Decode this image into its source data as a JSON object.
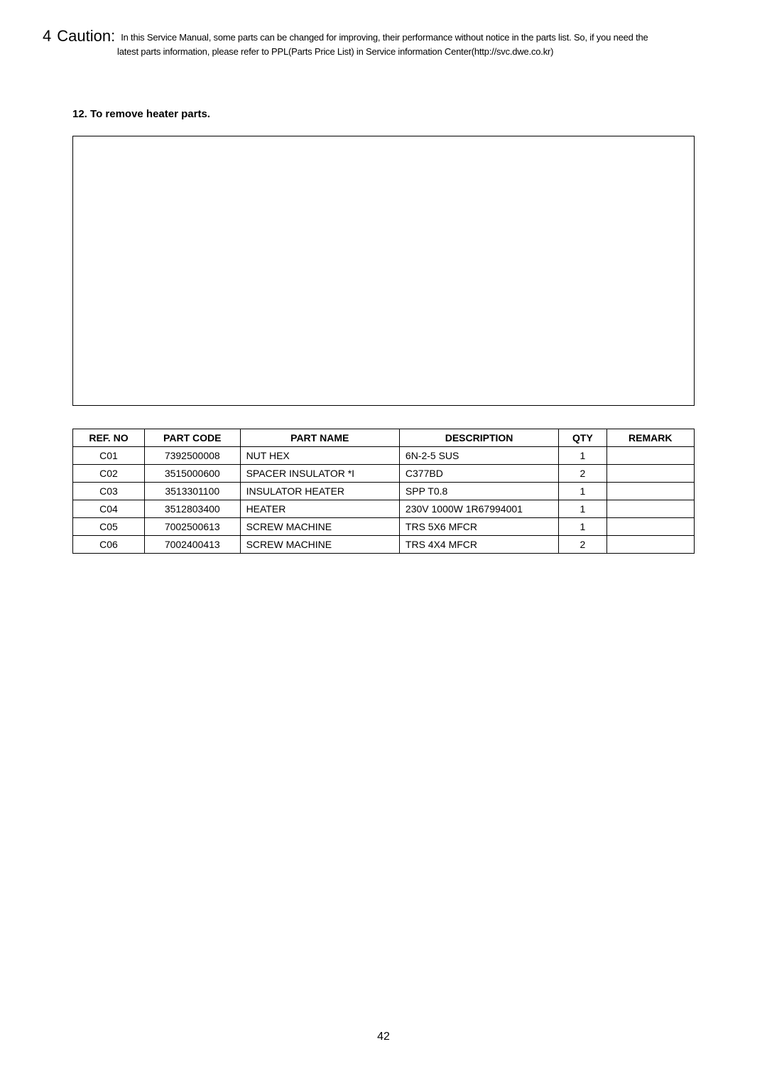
{
  "caution": {
    "number": "4",
    "label": "Caution:",
    "text_line1": "In this Service Manual, some parts can be changed for improving, their performance without notice in the parts list. So, if you need the",
    "text_line2": "latest parts information, please refer to PPL(Parts Price List) in Service information Center(http://svc.dwe.co.kr)"
  },
  "section_heading": "12. To remove heater parts.",
  "table": {
    "headers": {
      "ref_no": "REF. NO",
      "part_code": "PART CODE",
      "part_name": "PART NAME",
      "description": "DESCRIPTION",
      "qty": "QTY",
      "remark": "REMARK"
    },
    "rows": [
      {
        "ref_no": "C01",
        "part_code": "7392500008",
        "part_name": "NUT HEX",
        "description": "6N-2-5 SUS",
        "qty": "1",
        "remark": ""
      },
      {
        "ref_no": "C02",
        "part_code": "3515000600",
        "part_name": "SPACER INSULATOR *I",
        "description": "C377BD",
        "qty": "2",
        "remark": ""
      },
      {
        "ref_no": "C03",
        "part_code": "3513301100",
        "part_name": "INSULATOR HEATER",
        "description": "SPP T0.8",
        "qty": "1",
        "remark": ""
      },
      {
        "ref_no": "C04",
        "part_code": "3512803400",
        "part_name": "HEATER",
        "description": "230V 1000W 1R67994001",
        "qty": "1",
        "remark": ""
      },
      {
        "ref_no": "C05",
        "part_code": "7002500613",
        "part_name": "SCREW MACHINE",
        "description": "TRS 5X6 MFCR",
        "qty": "1",
        "remark": ""
      },
      {
        "ref_no": "C06",
        "part_code": "7002400413",
        "part_name": "SCREW MACHINE",
        "description": "TRS 4X4 MFCR",
        "qty": "2",
        "remark": ""
      }
    ]
  },
  "page_number": "42"
}
